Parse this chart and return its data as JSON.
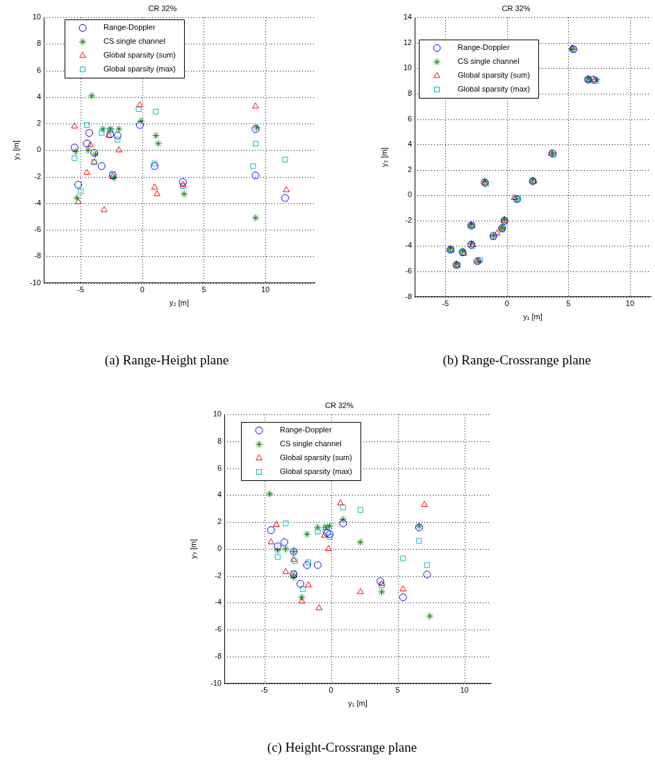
{
  "chart_data": [
    {
      "type": "scatter",
      "title": "CR 32%",
      "xlabel": "y₂ [m]",
      "ylabel": "y₃ [m]",
      "xlim": [
        -8,
        14
      ],
      "ylim": [
        -10,
        10
      ],
      "xticks": [
        -5,
        0,
        5,
        10
      ],
      "yticks": [
        -10,
        -8,
        -6,
        -4,
        -2,
        0,
        2,
        4,
        6,
        8,
        10
      ],
      "grid": true,
      "legend": "top left",
      "annotations": [
        "(a) Range-Height plane"
      ],
      "series": [
        {
          "name": "Range-Doppler",
          "color": "#0000ff",
          "marker": "circle",
          "x": [
            -5.5,
            -4.3,
            -4.5,
            -3.9,
            -3.3,
            -5.2,
            -2.6,
            -2.0,
            -0.2,
            1.0,
            -2.4,
            3.3,
            9.2,
            9.2,
            11.6
          ],
          "values": [
            0.2,
            1.3,
            0.5,
            -0.2,
            -1.2,
            -2.6,
            1.2,
            1.1,
            1.9,
            -1.2,
            -1.9,
            -2.4,
            1.6,
            -1.9,
            -3.6
          ]
        },
        {
          "name": "CS single channel",
          "color": "#008000",
          "marker": "cross",
          "x": [
            -4.1,
            -0.1,
            -3.2,
            -2.6,
            -1.9,
            1.1,
            1.3,
            -5.4,
            -4.4,
            -3.8,
            -2.3,
            -5.3,
            3.4,
            9.3,
            9.2
          ],
          "values": [
            4.1,
            2.2,
            1.6,
            1.6,
            1.6,
            1.1,
            0.5,
            -0.1,
            0.0,
            -0.3,
            -2.1,
            -3.6,
            -3.3,
            1.7,
            -5.1
          ]
        },
        {
          "name": "Global sparsity (sum)",
          "color": "#ff0000",
          "marker": "triangle",
          "x": [
            -5.5,
            -0.2,
            9.2,
            -4.2,
            -2.7,
            -1.9,
            -3.9,
            -4.5,
            -2.4,
            -5.2,
            -3.1,
            1.0,
            1.2,
            3.3,
            11.7
          ],
          "values": [
            1.8,
            3.4,
            3.3,
            0.4,
            1.1,
            0.0,
            -0.9,
            -1.7,
            -2.0,
            -3.9,
            -4.5,
            -2.8,
            -3.3,
            -2.6,
            -3.0
          ]
        },
        {
          "name": "Global sparsity (max)",
          "color": "#00bfbf",
          "marker": "square",
          "x": [
            -4.5,
            -3.3,
            -2.6,
            -2.0,
            -5.5,
            -3.9,
            -2.4,
            -5.0,
            -0.3,
            1.1,
            1.0,
            3.3,
            9.2,
            9.0,
            11.6
          ],
          "values": [
            1.9,
            1.3,
            1.5,
            0.8,
            -0.6,
            -0.9,
            -1.8,
            -3.1,
            3.1,
            2.9,
            -1.0,
            -2.7,
            0.5,
            -1.2,
            -0.7
          ]
        }
      ]
    },
    {
      "type": "scatter",
      "title": "CR 32%",
      "xlabel": "y₁ [m]",
      "ylabel": "y₂ [m]",
      "xlim": [
        -7.5,
        11.7
      ],
      "ylim": [
        -8,
        14
      ],
      "xticks": [
        -5,
        0,
        5,
        10
      ],
      "yticks": [
        -8,
        -6,
        -4,
        -2,
        0,
        2,
        4,
        6,
        8,
        10,
        12,
        14
      ],
      "grid": true,
      "legend": "top left",
      "annotations": [
        "(b) Range-Crossrange plane"
      ],
      "series": [
        {
          "name": "Range-Doppler",
          "color": "#0000ff",
          "marker": "circle",
          "x": [
            5.4,
            6.6,
            7.0,
            3.7,
            -1.8,
            2.1,
            0.8,
            -0.2,
            -0.4,
            -1.1,
            -2.9,
            -2.9,
            -4.6,
            -3.6,
            -4.1,
            -2.4
          ],
          "values": [
            11.5,
            9.1,
            9.1,
            3.3,
            1.0,
            1.1,
            -0.3,
            -2.0,
            -2.6,
            -3.2,
            -2.4,
            -3.9,
            -4.3,
            -4.5,
            -5.5,
            -5.2
          ]
        },
        {
          "name": "CS single channel",
          "color": "#008000",
          "marker": "cross",
          "x": [
            5.3,
            6.6,
            7.3,
            3.7,
            -1.8,
            2.1,
            0.8,
            -0.2,
            -0.4,
            -1.1,
            -2.9,
            -2.9,
            -4.6,
            -3.6,
            -4.1,
            -2.3
          ],
          "values": [
            11.5,
            9.2,
            9.1,
            3.3,
            1.1,
            1.2,
            -0.3,
            -1.9,
            -2.6,
            -3.2,
            -2.3,
            -3.8,
            -4.2,
            -4.4,
            -5.4,
            -5.2
          ]
        },
        {
          "name": "Global sparsity (sum)",
          "color": "#ff0000",
          "marker": "triangle",
          "x": [
            5.3,
            6.7,
            7.1,
            3.6,
            -1.8,
            2.2,
            0.6,
            -0.2,
            -0.4,
            -0.8,
            -2.9,
            -2.8,
            -4.6,
            -3.5,
            -4.1,
            -2.4
          ],
          "values": [
            11.6,
            9.1,
            9.1,
            3.3,
            1.0,
            1.1,
            -0.2,
            -2.0,
            -2.6,
            -3.0,
            -2.4,
            -3.9,
            -4.3,
            -4.6,
            -5.5,
            -5.2
          ]
        },
        {
          "name": "Global sparsity (max)",
          "color": "#00bfbf",
          "marker": "square",
          "x": [
            5.4,
            6.6,
            7.2,
            3.8,
            -1.7,
            2.1,
            0.9,
            -0.2,
            -0.4,
            -1.1,
            -2.8,
            -2.8,
            -4.5,
            -3.6,
            -4.0,
            -2.2
          ],
          "values": [
            11.5,
            9.1,
            9.0,
            3.2,
            0.9,
            1.1,
            -0.3,
            -2.1,
            -2.7,
            -3.3,
            -2.4,
            -4.0,
            -4.3,
            -4.5,
            -5.5,
            -5.1
          ]
        }
      ]
    },
    {
      "type": "scatter",
      "title": "CR 32%",
      "xlabel": "y₁ [m]",
      "ylabel": "y₃ [m]",
      "xlim": [
        -8,
        12
      ],
      "ylim": [
        -10,
        10
      ],
      "xticks": [
        -5,
        0,
        5,
        10
      ],
      "yticks": [
        -10,
        -8,
        -6,
        -4,
        -2,
        0,
        2,
        4,
        6,
        8,
        10
      ],
      "grid": true,
      "legend": "top left",
      "annotations": [
        "(c) Height-Crossrange plane"
      ],
      "series": [
        {
          "name": "Range-Doppler",
          "color": "#0000ff",
          "marker": "circle",
          "x": [
            -4.5,
            -4.0,
            -3.5,
            -2.8,
            -1.8,
            -1.0,
            -2.8,
            -2.3,
            -0.3,
            -0.1,
            0.9,
            3.7,
            5.4,
            6.6,
            7.2
          ],
          "values": [
            1.4,
            0.2,
            0.5,
            -0.2,
            -1.2,
            -1.2,
            -1.9,
            -2.6,
            1.2,
            1.1,
            1.9,
            -2.4,
            -3.6,
            1.6,
            -1.9
          ]
        },
        {
          "name": "CS single channel",
          "color": "#008000",
          "marker": "cross",
          "x": [
            -4.6,
            -1.8,
            -1.0,
            -0.4,
            -0.1,
            0.9,
            2.2,
            -4.0,
            -3.4,
            -2.8,
            -2.8,
            -2.2,
            3.8,
            6.6,
            7.4
          ],
          "values": [
            4.1,
            1.1,
            1.6,
            1.6,
            1.7,
            2.2,
            0.5,
            -0.1,
            0.0,
            -0.2,
            -2.1,
            -3.6,
            -3.2,
            1.7,
            -5.0
          ]
        },
        {
          "name": "Global sparsity (sum)",
          "color": "#ff0000",
          "marker": "triangle",
          "x": [
            -4.1,
            -4.5,
            0.7,
            7.0,
            -0.5,
            -0.2,
            -2.8,
            -3.4,
            -2.8,
            -1.7,
            -2.2,
            -0.9,
            2.2,
            3.8,
            5.4
          ],
          "values": [
            1.8,
            0.5,
            3.4,
            3.3,
            1.0,
            0.0,
            -0.8,
            -1.7,
            -2.0,
            -2.7,
            -3.9,
            -4.4,
            -3.2,
            -2.6,
            -3.0
          ]
        },
        {
          "name": "Global sparsity (max)",
          "color": "#00bfbf",
          "marker": "square",
          "x": [
            -3.4,
            -1.0,
            0.9,
            2.2,
            -0.4,
            -0.1,
            -4.0,
            -2.7,
            -1.7,
            -2.8,
            -2.1,
            3.8,
            5.4,
            6.6,
            7.2
          ],
          "values": [
            1.9,
            1.3,
            3.1,
            2.9,
            1.6,
            0.9,
            -0.6,
            -0.9,
            -1.0,
            -1.8,
            -3.0,
            -2.7,
            -0.7,
            0.6,
            -1.2
          ]
        }
      ]
    }
  ]
}
